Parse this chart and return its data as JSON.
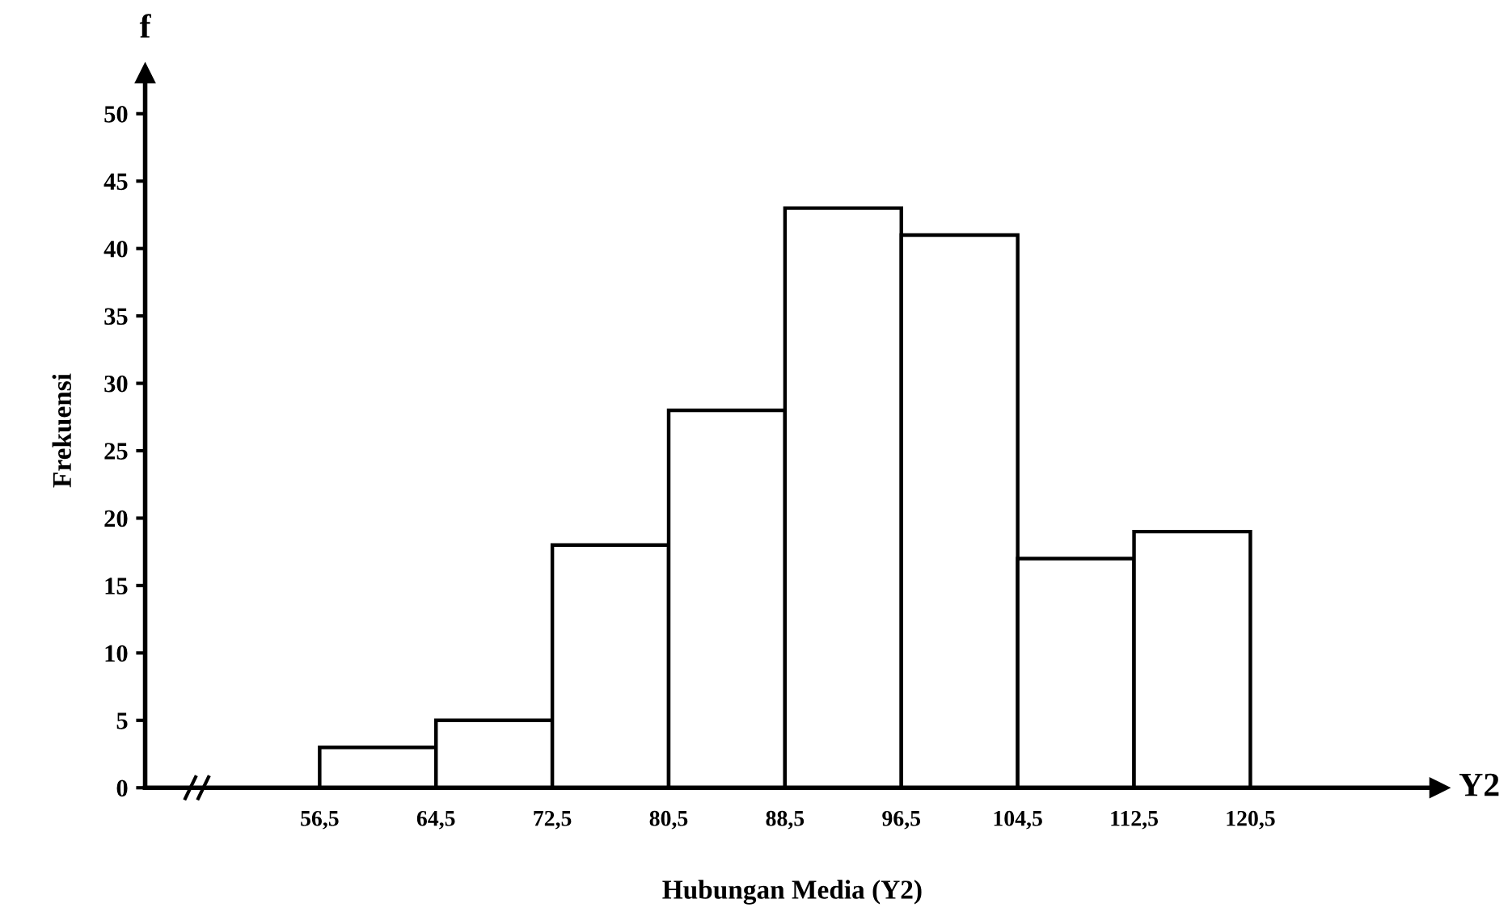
{
  "chart_data": {
    "type": "histogram",
    "xlabel": "Hubungan Media (Y2)",
    "ylabel": "Frekuensi",
    "annotations": [
      "f",
      "Y2"
    ],
    "bins": [
      56.5,
      64.5,
      72.5,
      80.5,
      88.5,
      96.5,
      104.5,
      112.5,
      120.5
    ],
    "values": [
      3,
      5,
      18,
      28,
      43,
      41,
      17,
      19
    ],
    "color": "#ffffff",
    "xlim": [
      44.5,
      133.5
    ],
    "ylim": [
      0,
      53
    ],
    "xticks": [
      {
        "value": 56.5,
        "label": "56,5"
      },
      {
        "value": 64.5,
        "label": "64,5"
      },
      {
        "value": 72.5,
        "label": "72,5"
      },
      {
        "value": 80.5,
        "label": "80,5"
      },
      {
        "value": 88.5,
        "label": "88,5"
      },
      {
        "value": 96.5,
        "label": "96,5"
      },
      {
        "value": 104.5,
        "label": "104,5"
      },
      {
        "value": 112.5,
        "label": "112,5"
      },
      {
        "value": 120.5,
        "label": "120,5"
      }
    ],
    "yticks": [
      0,
      5,
      10,
      15,
      20,
      25,
      30,
      35,
      40,
      45,
      50
    ],
    "grid": false,
    "legend": false
  }
}
